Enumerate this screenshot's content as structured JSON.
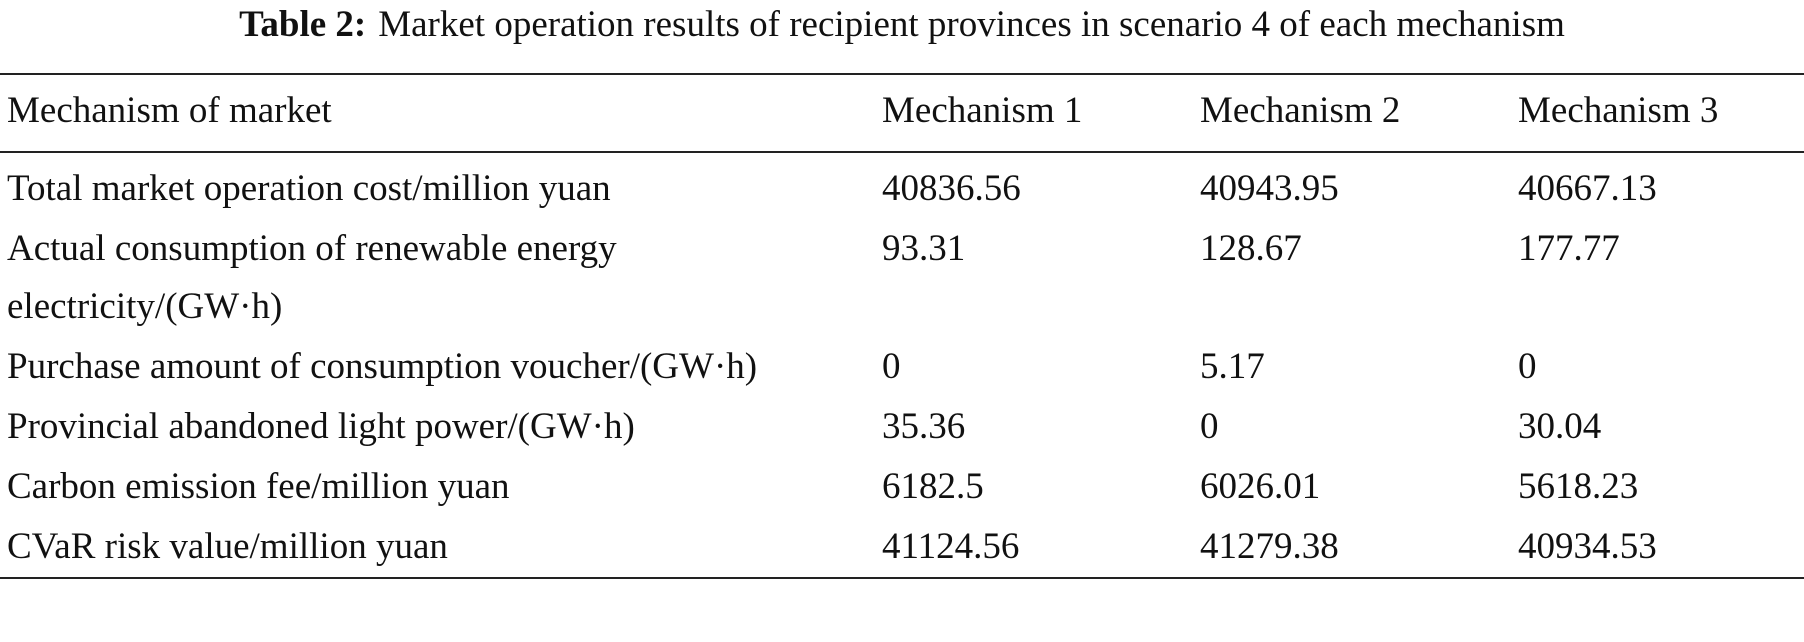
{
  "caption": {
    "label": "Table 2:",
    "text": "Market operation results of recipient provinces in scenario 4 of each mechanism"
  },
  "table": {
    "header": [
      "Mechanism of market",
      "Mechanism 1",
      "Mechanism 2",
      "Mechanism 3"
    ],
    "rows": [
      [
        "Total market operation cost/million yuan",
        "40836.56",
        "40943.95",
        "40667.13"
      ],
      [
        "Actual consumption of renewable energy electricity/(GW·h)",
        "93.31",
        "128.67",
        "177.77"
      ],
      [
        "Purchase amount of consumption voucher/(GW·h)",
        "0",
        "5.17",
        "0"
      ],
      [
        "Provincial abandoned light power/(GW·h)",
        "35.36",
        "0",
        "30.04"
      ],
      [
        "Carbon emission fee/million yuan",
        "6182.5",
        "6026.01",
        "5618.23"
      ],
      [
        "CVaR risk value/million yuan",
        "41124.56",
        "41279.38",
        "40934.53"
      ]
    ]
  }
}
